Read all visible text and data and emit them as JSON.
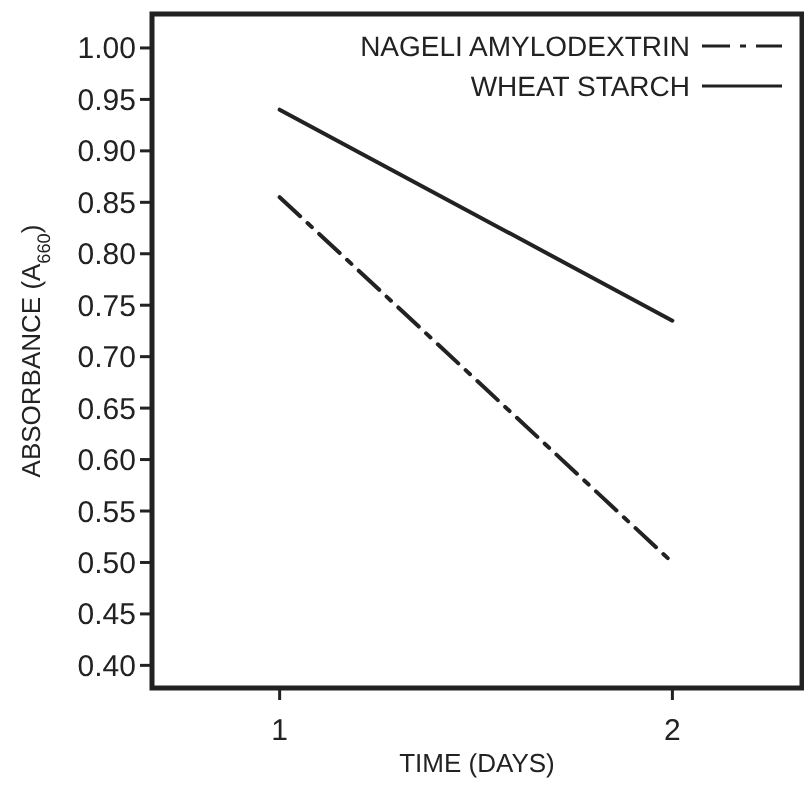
{
  "chart_data": {
    "type": "line",
    "xlabel": "TIME (DAYS)",
    "ylabel": "ABSORBANCE (A$_{660}$)",
    "x": [
      1,
      2
    ],
    "series": [
      {
        "name": "NAGELI AMYLODEXTRIN",
        "color": "#222222",
        "values": [
          0.855,
          0.5
        ],
        "line_style": "dashed"
      },
      {
        "name": "WHEAT STARCH",
        "color": "#222222",
        "values": [
          0.94,
          0.735
        ],
        "line_style": "solid"
      }
    ],
    "xlim": [
      0.675,
      2.33
    ],
    "ylim": [
      0.378,
      1.033
    ],
    "xticks": [
      1,
      2
    ],
    "yticks": [
      {
        "value": 0.4,
        "label": "0.40"
      },
      {
        "value": 0.45,
        "label": "0.45"
      },
      {
        "value": 0.5,
        "label": "0.50"
      },
      {
        "value": 0.55,
        "label": "0.55"
      },
      {
        "value": 0.6,
        "label": "0.60"
      },
      {
        "value": 0.65,
        "label": "0.65"
      },
      {
        "value": 0.7,
        "label": "0.70"
      },
      {
        "value": 0.75,
        "label": "0.75"
      },
      {
        "value": 0.8,
        "label": "0.80"
      },
      {
        "value": 0.85,
        "label": "0.85"
      },
      {
        "value": 0.9,
        "label": "0.90"
      },
      {
        "value": 0.95,
        "label": "0.95"
      },
      {
        "value": 1,
        "label": "1.00"
      }
    ],
    "legend": "top right",
    "grid": false,
    "marker": "none"
  }
}
